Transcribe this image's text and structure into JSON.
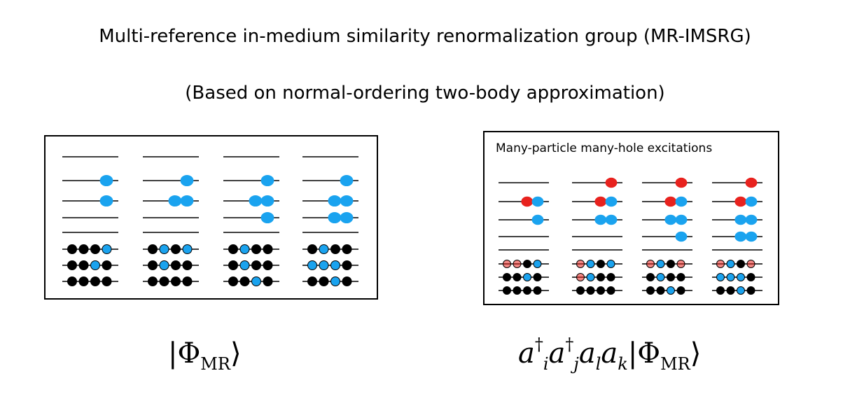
{
  "title": "Multi-reference in-medium similarity renormalization group (MR-IMSRG)",
  "subtitle": "(Based on normal-ordering two-body approximation)",
  "colors": {
    "hole": "#000000",
    "particle": "#1aa3ef",
    "red": "#e8221e",
    "line": "#000000"
  },
  "left_panel": {
    "formula": "|Φ_MR⟩",
    "formula_parts": {
      "bra": "|",
      "phi": "Φ",
      "sub": "MR",
      "ket": "⟩"
    },
    "configs": [
      {
        "upper": [
          [],
          [
            "p"
          ],
          [
            "p"
          ],
          [],
          []
        ],
        "lower": [
          [
            "h",
            "h",
            "h",
            "c"
          ],
          [
            "h",
            "h",
            "c",
            "h"
          ],
          [
            "h",
            "h",
            "h",
            "h"
          ]
        ]
      },
      {
        "upper": [
          [],
          [
            "p"
          ],
          [
            "p",
            "p"
          ],
          [],
          []
        ],
        "lower": [
          [
            "h",
            "c",
            "h",
            "c"
          ],
          [
            "h",
            "c",
            "h",
            "h"
          ],
          [
            "h",
            "h",
            "h",
            "h"
          ]
        ]
      },
      {
        "upper": [
          [],
          [
            "p"
          ],
          [
            "p",
            "p"
          ],
          [
            "p"
          ],
          []
        ],
        "lower": [
          [
            "h",
            "c",
            "h",
            "h"
          ],
          [
            "h",
            "c",
            "h",
            "h"
          ],
          [
            "h",
            "h",
            "c",
            "h"
          ]
        ]
      },
      {
        "upper": [
          [],
          [
            "p"
          ],
          [
            "p",
            "p"
          ],
          [
            "p",
            "p"
          ],
          []
        ],
        "lower": [
          [
            "h",
            "c",
            "h",
            "h"
          ],
          [
            "c",
            "c",
            "c",
            "h"
          ],
          [
            "h",
            "h",
            "c",
            "h"
          ]
        ]
      }
    ]
  },
  "right_panel": {
    "title": "Many-particle many-hole excitations",
    "formula": "a†_i a†_j a_l a_k |Φ_MR⟩",
    "formula_parts": {
      "op": "a",
      "dagger": "†",
      "i": "i",
      "j": "j",
      "l": "l",
      "k": "k",
      "bra": "|",
      "phi": "Φ",
      "sub": "MR",
      "ket": "⟩"
    },
    "configs": [
      {
        "upper": [
          [],
          [
            "r",
            "p"
          ],
          [
            "p"
          ],
          [],
          []
        ],
        "lower": [
          [
            "rh",
            "rh",
            "h",
            "c"
          ],
          [
            "h",
            "h",
            "c",
            "h"
          ],
          [
            "h",
            "h",
            "h",
            "h"
          ]
        ]
      },
      {
        "upper": [
          [
            "r"
          ],
          [
            "r",
            "p"
          ],
          [
            "p",
            "p"
          ],
          [],
          []
        ],
        "lower": [
          [
            "rh",
            "c",
            "h",
            "c"
          ],
          [
            "rh",
            "c",
            "h",
            "h"
          ],
          [
            "h",
            "h",
            "h",
            "h"
          ]
        ]
      },
      {
        "upper": [
          [
            "r"
          ],
          [
            "r",
            "p"
          ],
          [
            "p",
            "p"
          ],
          [
            "p"
          ],
          []
        ],
        "lower": [
          [
            "rh",
            "c",
            "h",
            "rh"
          ],
          [
            "h",
            "c",
            "h",
            "h"
          ],
          [
            "h",
            "h",
            "c",
            "h"
          ]
        ]
      },
      {
        "upper": [
          [
            "r"
          ],
          [
            "r",
            "p"
          ],
          [
            "p",
            "p"
          ],
          [
            "p",
            "p"
          ],
          []
        ],
        "lower": [
          [
            "rh",
            "c",
            "h",
            "rh"
          ],
          [
            "c",
            "c",
            "c",
            "h"
          ],
          [
            "h",
            "h",
            "c",
            "h"
          ]
        ]
      }
    ]
  }
}
